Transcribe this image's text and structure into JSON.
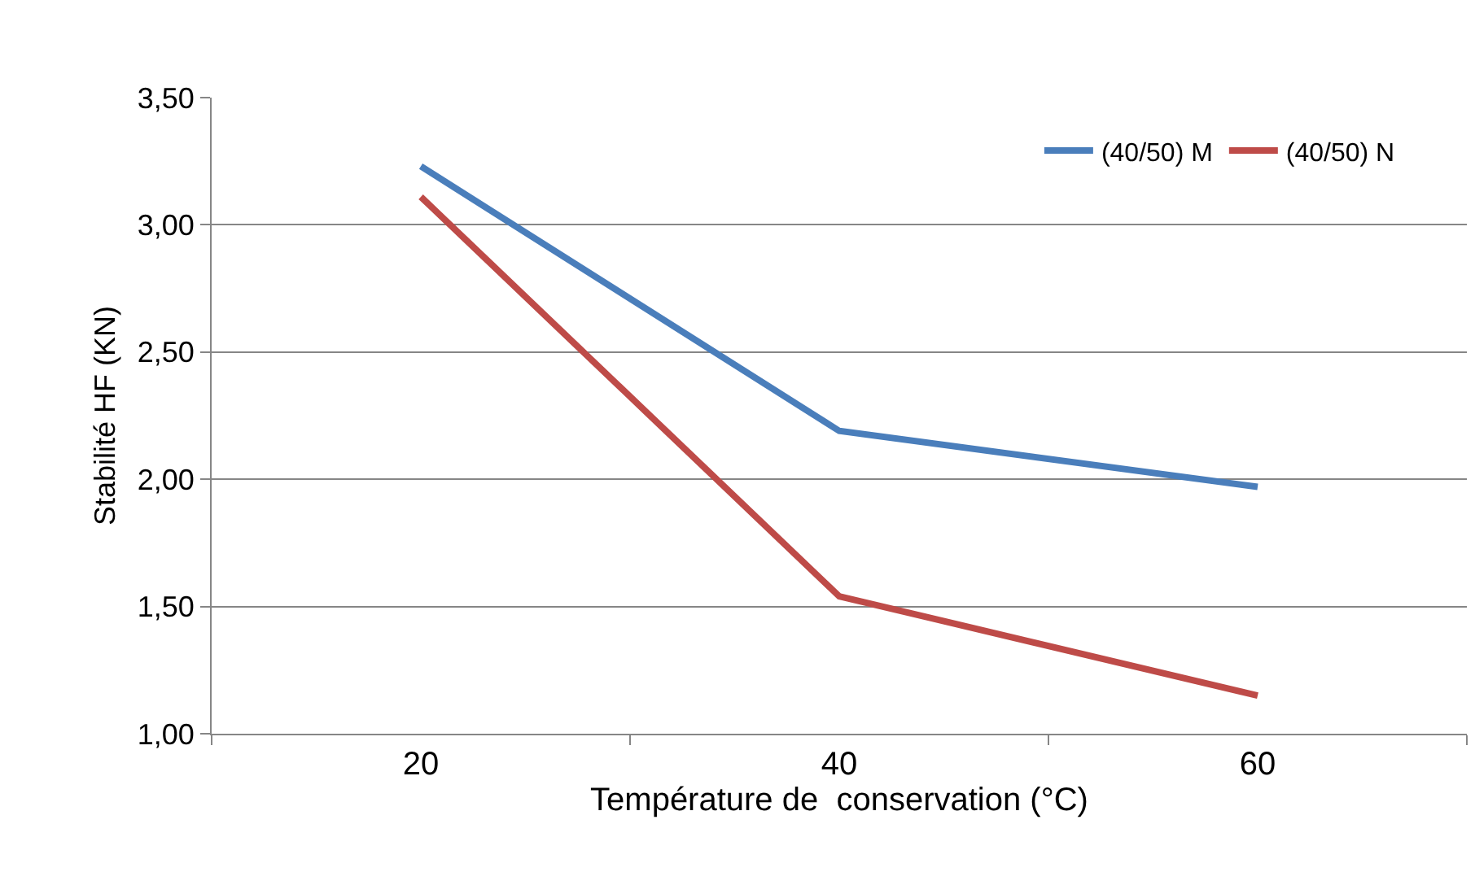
{
  "chart_data": {
    "type": "line",
    "xlabel": "Température de  conservation (°C)",
    "ylabel": "Stabilité HF (KN)",
    "categories": [
      "20",
      "40",
      "60"
    ],
    "series": [
      {
        "name": "(40/50) M",
        "color": "#4a7ebb",
        "values": [
          3.23,
          2.19,
          1.97
        ]
      },
      {
        "name": "(40/50) N",
        "color": "#be4b48",
        "values": [
          3.11,
          1.54,
          1.15
        ]
      }
    ],
    "ylim": [
      1.0,
      3.5
    ],
    "yticks": [
      {
        "value": 1.0,
        "label": "1,00"
      },
      {
        "value": 1.5,
        "label": "1,50"
      },
      {
        "value": 2.0,
        "label": "2,00"
      },
      {
        "value": 2.5,
        "label": "2,50"
      },
      {
        "value": 3.0,
        "label": "3,00"
      },
      {
        "value": 3.5,
        "label": "3,50"
      }
    ],
    "grid": "y",
    "legend": "top right",
    "marker": "none",
    "line_style": "solid"
  }
}
